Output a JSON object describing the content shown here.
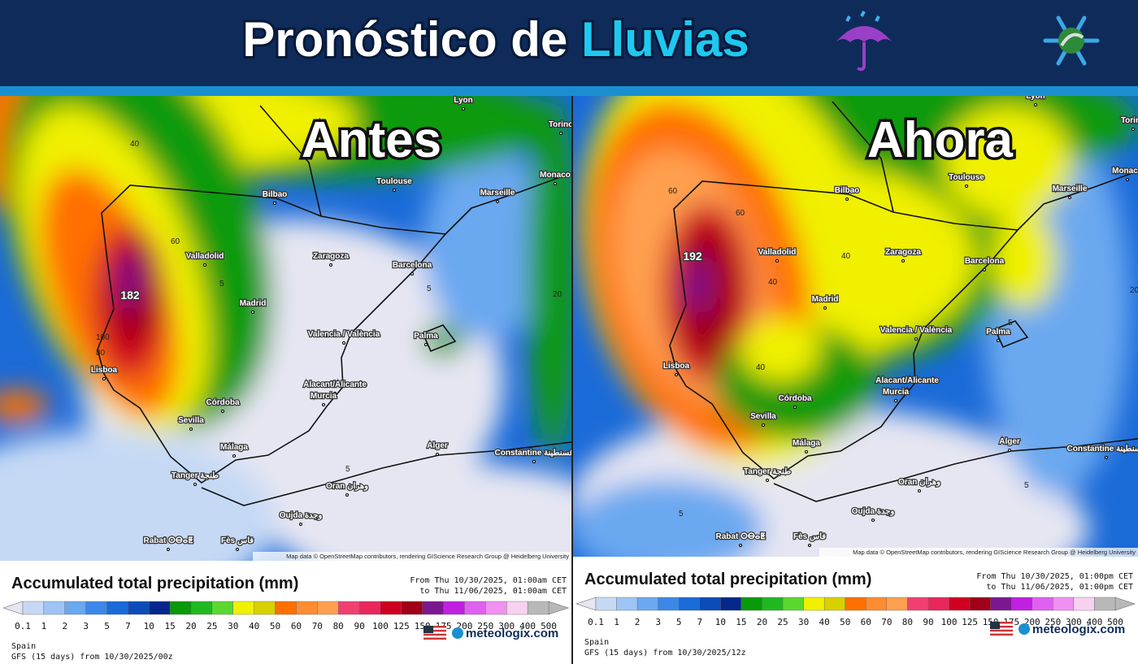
{
  "header": {
    "title_part1": "Pronóstico de",
    "title_part2": "Lluvias"
  },
  "scale": [
    {
      "value": 0.1,
      "color": "#e6e6f2"
    },
    {
      "value": 1,
      "color": "#c5d9f5"
    },
    {
      "value": 2,
      "color": "#9dc4f5"
    },
    {
      "value": 3,
      "color": "#6aa8f0"
    },
    {
      "value": 5,
      "color": "#3b88e8"
    },
    {
      "value": 7,
      "color": "#1a6ad8"
    },
    {
      "value": 10,
      "color": "#0c4cb8"
    },
    {
      "value": 15,
      "color": "#06278a"
    },
    {
      "value": 20,
      "color": "#089a08"
    },
    {
      "value": 25,
      "color": "#20b820"
    },
    {
      "value": 30,
      "color": "#5ad830"
    },
    {
      "value": 40,
      "color": "#f0f000"
    },
    {
      "value": 50,
      "color": "#d8d000"
    },
    {
      "value": 60,
      "color": "#ff7000"
    },
    {
      "value": 70,
      "color": "#ff8c30"
    },
    {
      "value": 80,
      "color": "#ffa050"
    },
    {
      "value": 90,
      "color": "#f04070"
    },
    {
      "value": 100,
      "color": "#e8285a"
    },
    {
      "value": 125,
      "color": "#d00020"
    },
    {
      "value": 150,
      "color": "#a00018"
    },
    {
      "value": 175,
      "color": "#7a1890"
    },
    {
      "value": 200,
      "color": "#c020e0"
    },
    {
      "value": 250,
      "color": "#e060f0"
    },
    {
      "value": 300,
      "color": "#f090f0"
    },
    {
      "value": 400,
      "color": "#f8d0f0"
    },
    {
      "value": 500,
      "color": "#b8b8b8"
    }
  ],
  "panels": [
    {
      "label": "Antes",
      "peak": 182,
      "cities": [
        "Lyon",
        "Torino",
        "Monaco",
        "Toulouse",
        "Marseille",
        "Bilbao",
        "Valladolid",
        "Zaragoza",
        "Barcelona",
        "Madrid",
        "Valencia / València",
        "Palma",
        "Lisboa",
        "Alacant/Alicante",
        "Murcia",
        "Córdoba",
        "Sevilla",
        "Málaga",
        "Alger",
        "Constantine قسنطينة",
        "Tanger طنجة",
        "Oran وهران",
        "Oujda وجدة",
        "Rabat ⵔⴱⴰⵟ",
        "Fès فاس"
      ],
      "contours": [
        "40",
        "60",
        "100",
        "80",
        "5",
        "5",
        "20",
        "5"
      ],
      "credit": "Map data © OpenStreetMap contributors, rendering GIScience Research Group @ Heidelberg University",
      "legend": {
        "title": "Accumulated total precipitation (mm)",
        "period_from": "From Thu 10/30/2025, 01:00am CET",
        "period_to": "to Thu 11/06/2025, 01:00am CET",
        "region": "Spain",
        "run": "GFS (15 days) from 10/30/2025/00z",
        "brand": "meteologix.com"
      }
    },
    {
      "label": "Ahora",
      "peak": 192,
      "cities": [
        "Lyon",
        "Torino",
        "Monaco",
        "Toulouse",
        "Marseille",
        "Bilbao",
        "Valladolid",
        "Zaragoza",
        "Barcelona",
        "Madrid",
        "Valencia / València",
        "Palma",
        "Lisboa",
        "Alacant/Alicante",
        "Murcia",
        "Córdoba",
        "Sevilla",
        "Málaga",
        "Alger",
        "Constantine قسنطينة",
        "Tanger طنجة",
        "Oran وهران",
        "Oujda وجدة",
        "Rabat ⵔⴱⴰⵟ",
        "Fès فاس"
      ],
      "contours": [
        "60",
        "40",
        "60",
        "40",
        "40",
        "5",
        "20",
        "5",
        "5"
      ],
      "credit": "Map data © OpenStreetMap contributors, rendering GIScience Research Group @ Heidelberg University",
      "legend": {
        "title": "Accumulated total precipitation (mm)",
        "period_from": "From Thu 10/30/2025, 01:00pm CET",
        "period_to": "to Thu 11/06/2025, 01:00pm CET",
        "region": "Spain",
        "run": "GFS (15 days) from 10/30/2025/12z",
        "brand": "meteologix.com"
      }
    }
  ]
}
